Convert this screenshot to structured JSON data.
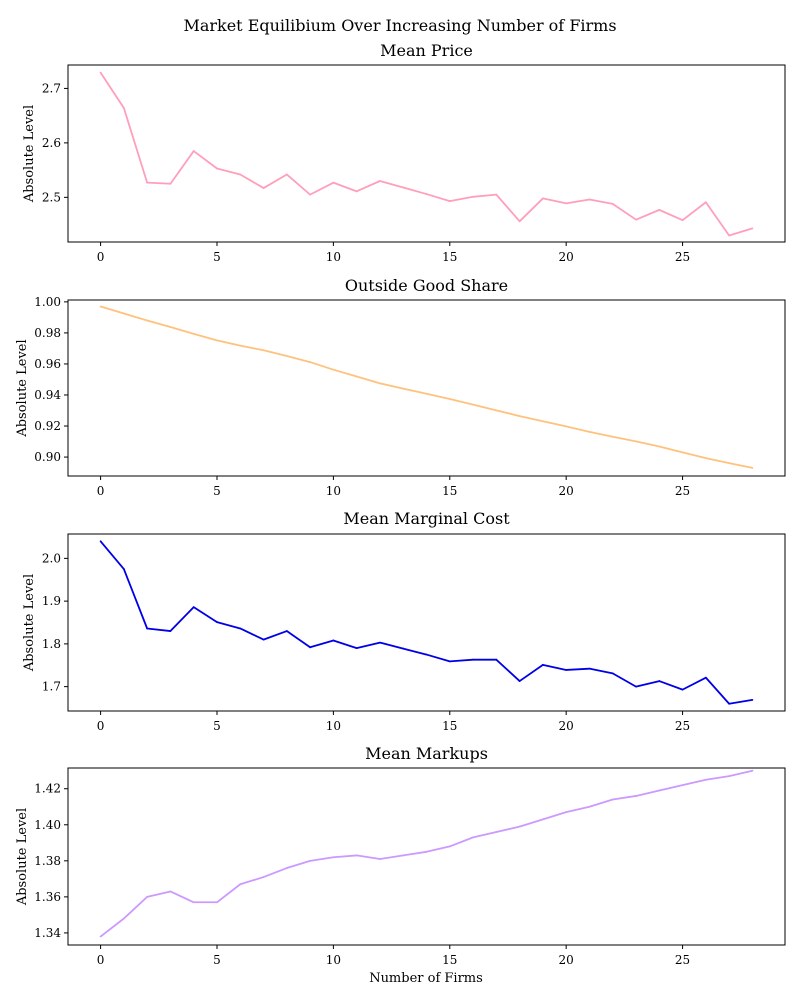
{
  "figure": {
    "title": "Market Equilibium Over Increasing Number of Firms",
    "xlabel": "Number of Firms"
  },
  "chart_data": [
    {
      "type": "line",
      "title": "Mean Price",
      "ylabel": "Absolute Level",
      "color": "#ff9fba",
      "x": [
        0,
        1,
        2,
        3,
        4,
        5,
        6,
        7,
        8,
        9,
        10,
        11,
        12,
        13,
        14,
        15,
        16,
        17,
        18,
        19,
        20,
        21,
        22,
        23,
        24,
        25,
        26,
        27,
        28
      ],
      "values": [
        2.729,
        2.664,
        2.527,
        2.525,
        2.585,
        2.553,
        2.542,
        2.517,
        2.542,
        2.505,
        2.527,
        2.511,
        2.53,
        2.518,
        2.506,
        2.493,
        2.501,
        2.505,
        2.456,
        2.498,
        2.489,
        2.496,
        2.488,
        2.459,
        2.477,
        2.458,
        2.491,
        2.43,
        2.443
      ],
      "xlim": [
        -1.4,
        29.4
      ],
      "ylim": [
        2.418,
        2.743
      ],
      "xticks": [
        0,
        5,
        10,
        15,
        20,
        25
      ],
      "yticks": [
        2.5,
        2.6,
        2.7
      ],
      "ytick_labels": [
        "2.5",
        "2.6",
        "2.7"
      ]
    },
    {
      "type": "line",
      "title": "Outside Good Share",
      "ylabel": "Absolute Level",
      "color": "#ffc27d",
      "x": [
        0,
        1,
        2,
        3,
        4,
        5,
        6,
        7,
        8,
        9,
        10,
        11,
        12,
        13,
        14,
        15,
        16,
        17,
        18,
        19,
        20,
        21,
        22,
        23,
        24,
        25,
        26,
        27,
        28
      ],
      "values": [
        0.997,
        0.9925,
        0.988,
        0.9838,
        0.9794,
        0.9752,
        0.9718,
        0.9688,
        0.9651,
        0.9612,
        0.9563,
        0.9519,
        0.9475,
        0.9441,
        0.9408,
        0.9374,
        0.9338,
        0.9301,
        0.9264,
        0.9231,
        0.9198,
        0.9162,
        0.9131,
        0.9101,
        0.9068,
        0.903,
        0.8993,
        0.8961,
        0.893
      ],
      "xlim": [
        -1.4,
        29.4
      ],
      "ylim": [
        0.8878,
        1.0012
      ],
      "xticks": [
        0,
        5,
        10,
        15,
        20,
        25
      ],
      "yticks": [
        0.9,
        0.92,
        0.94,
        0.96,
        0.98,
        1.0
      ],
      "ytick_labels": [
        "0.90",
        "0.92",
        "0.94",
        "0.96",
        "0.98",
        "1.00"
      ]
    },
    {
      "type": "line",
      "title": "Mean Marginal Cost",
      "ylabel": "Absolute Level",
      "color": "#0000e6",
      "x": [
        0,
        1,
        2,
        3,
        4,
        5,
        6,
        7,
        8,
        9,
        10,
        11,
        12,
        13,
        14,
        15,
        16,
        17,
        18,
        19,
        20,
        21,
        22,
        23,
        24,
        25,
        26,
        27,
        28
      ],
      "values": [
        2.04,
        1.975,
        1.836,
        1.83,
        1.886,
        1.851,
        1.836,
        1.81,
        1.83,
        1.792,
        1.808,
        1.79,
        1.803,
        1.789,
        1.775,
        1.759,
        1.763,
        1.763,
        1.713,
        1.751,
        1.739,
        1.742,
        1.731,
        1.7,
        1.713,
        1.693,
        1.721,
        1.66,
        1.669
      ],
      "xlim": [
        -1.4,
        29.4
      ],
      "ylim": [
        1.643,
        2.057
      ],
      "xticks": [
        0,
        5,
        10,
        15,
        20,
        25
      ],
      "yticks": [
        1.7,
        1.8,
        1.9,
        2.0
      ],
      "ytick_labels": [
        "1.7",
        "1.8",
        "1.9",
        "2.0"
      ]
    },
    {
      "type": "line",
      "title": "Mean Markups",
      "ylabel": "Absolute Level",
      "color": "#cc99ff",
      "x": [
        0,
        1,
        2,
        3,
        4,
        5,
        6,
        7,
        8,
        9,
        10,
        11,
        12,
        13,
        14,
        15,
        16,
        17,
        18,
        19,
        20,
        21,
        22,
        23,
        24,
        25,
        26,
        27,
        28
      ],
      "values": [
        1.338,
        1.348,
        1.36,
        1.363,
        1.357,
        1.357,
        1.367,
        1.371,
        1.376,
        1.38,
        1.382,
        1.383,
        1.381,
        1.383,
        1.385,
        1.388,
        1.393,
        1.396,
        1.399,
        1.403,
        1.407,
        1.41,
        1.414,
        1.416,
        1.419,
        1.422,
        1.425,
        1.427,
        1.43
      ],
      "xlim": [
        -1.4,
        29.4
      ],
      "ylim": [
        1.3333,
        1.4315
      ],
      "xticks": [
        0,
        5,
        10,
        15,
        20,
        25
      ],
      "yticks": [
        1.34,
        1.36,
        1.38,
        1.4,
        1.42
      ],
      "ytick_labels": [
        "1.34",
        "1.36",
        "1.38",
        "1.40",
        "1.42"
      ]
    }
  ]
}
